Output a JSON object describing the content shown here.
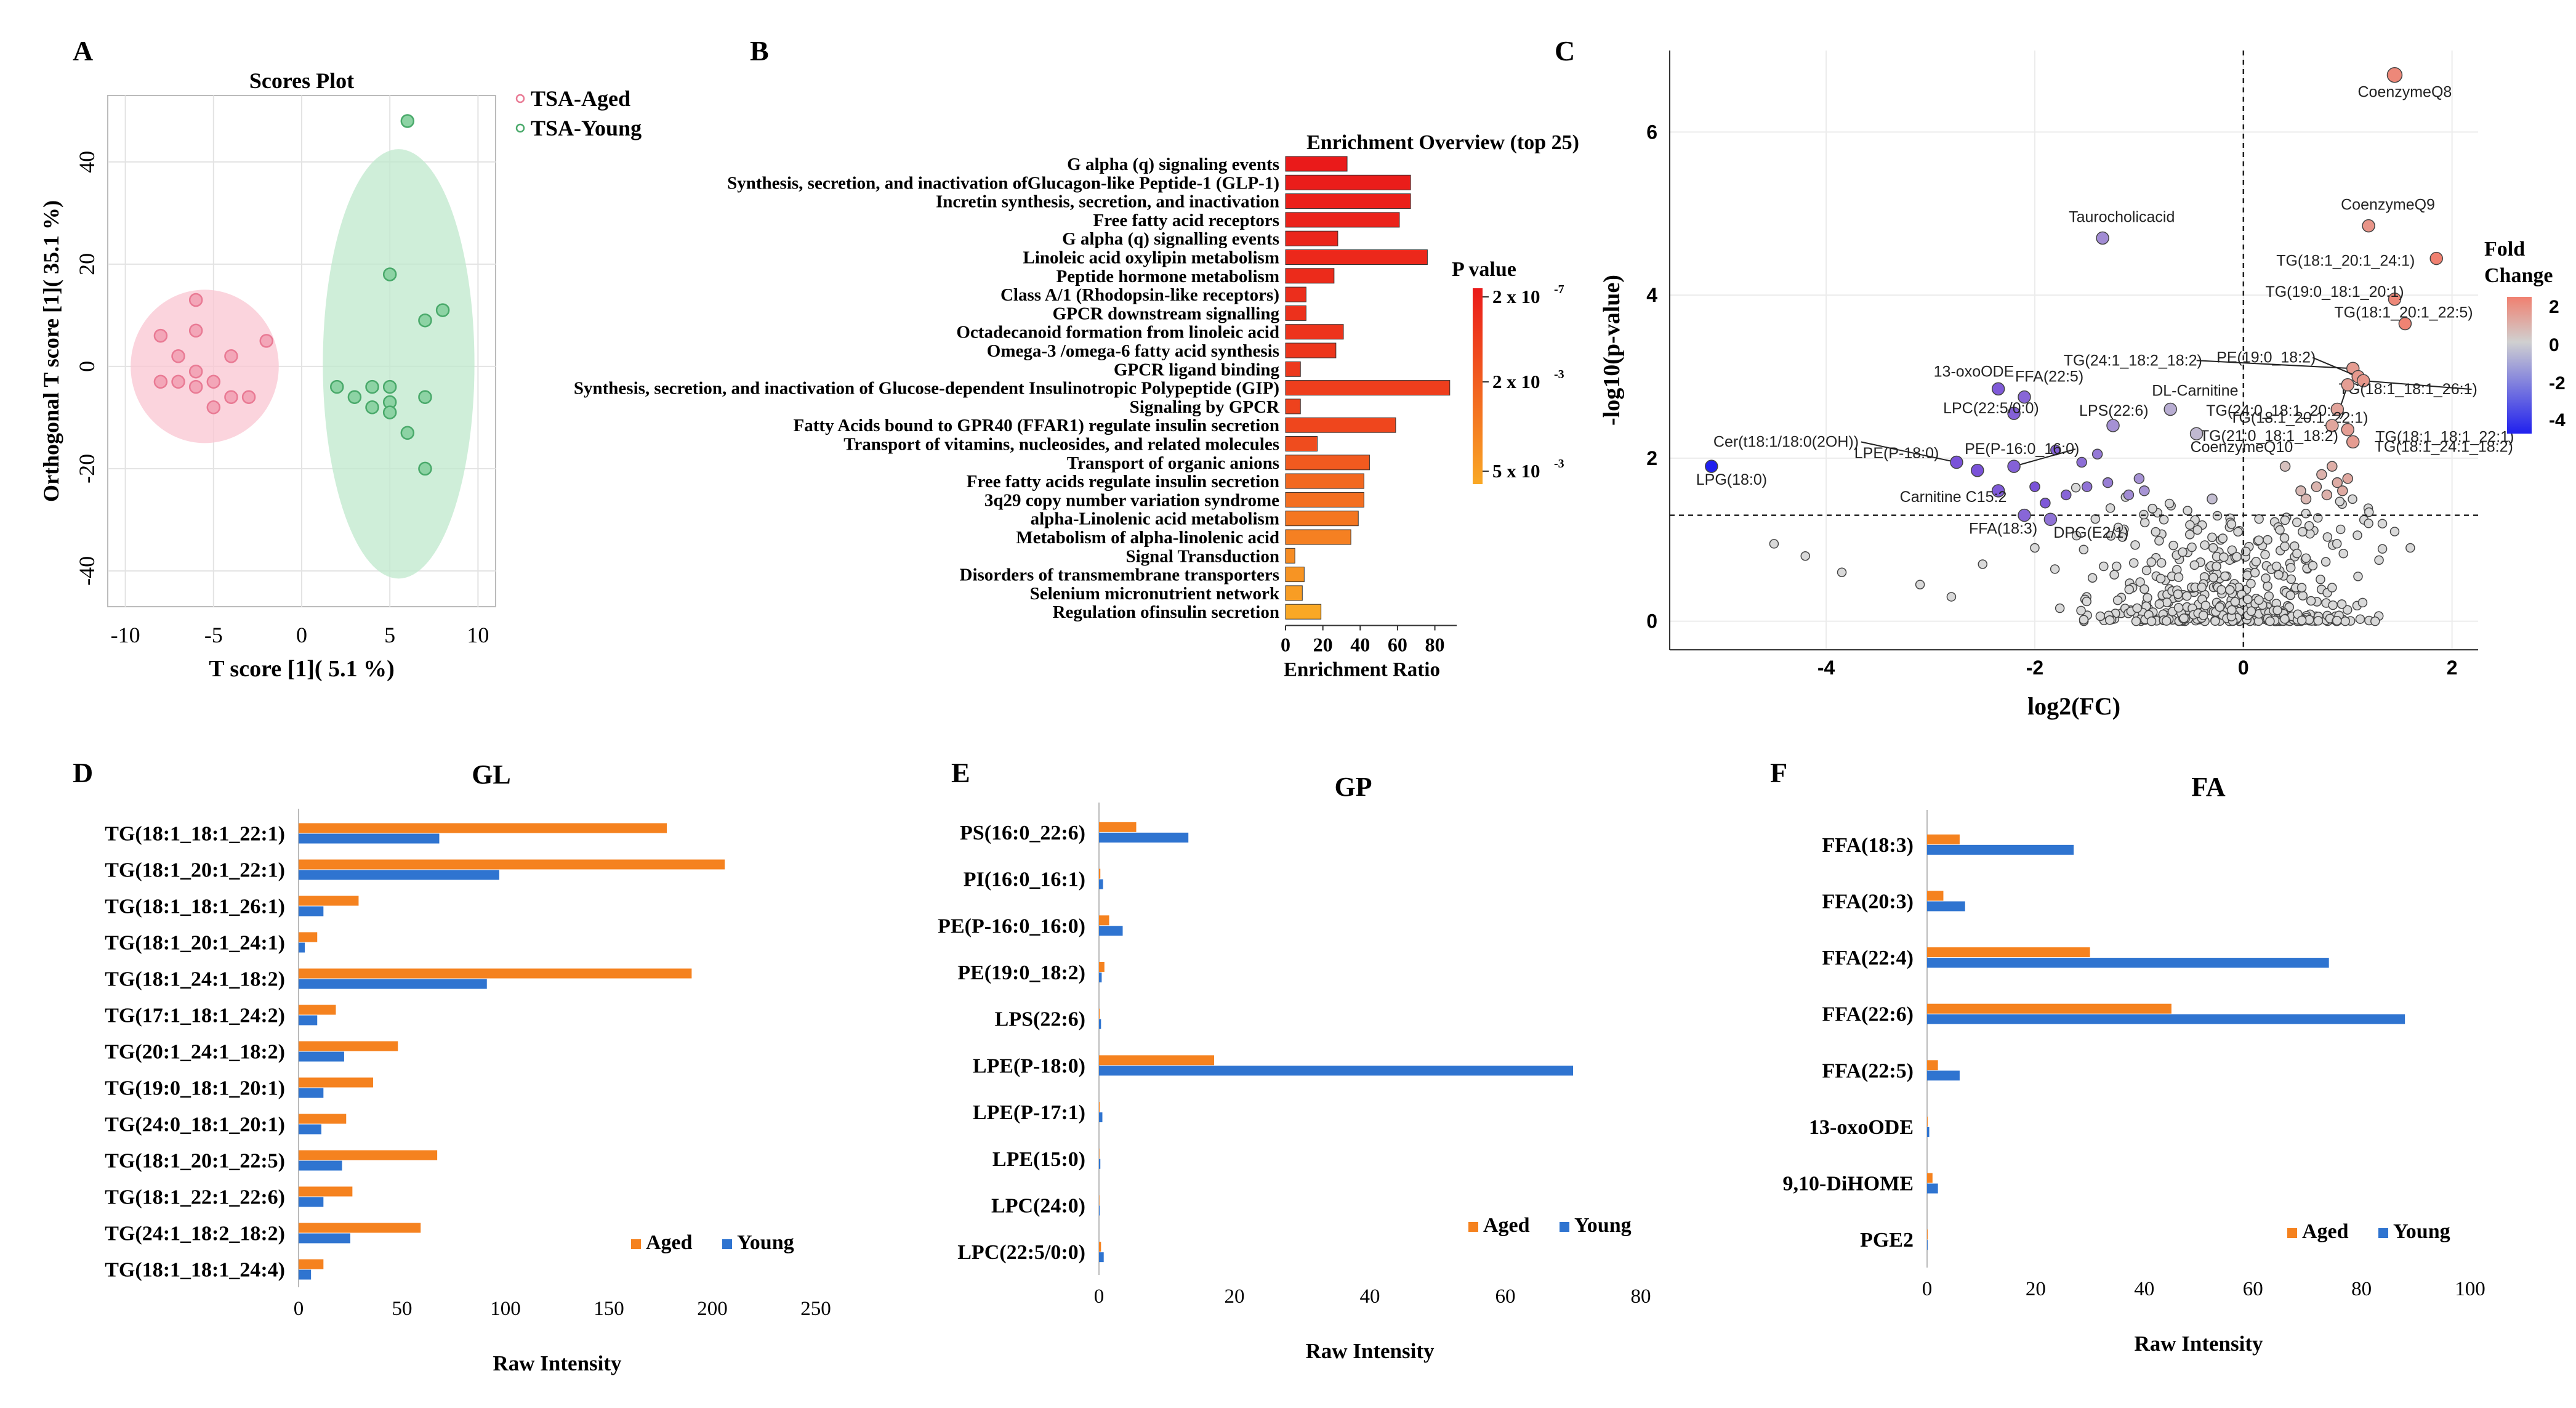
{
  "chart_data": [
    {
      "panel": "A",
      "type": "scatter",
      "title": "Scores Plot",
      "xlabel": "T score [1]( 5.1 %)",
      "ylabel": "Orthogonal T score [1]( 35.1 %)",
      "xlim": [
        -11,
        11
      ],
      "ylim": [
        -47,
        53
      ],
      "xticks": [
        -10,
        -5,
        0,
        5,
        10
      ],
      "yticks": [
        -40,
        -20,
        0,
        20,
        40
      ],
      "grid": true,
      "legend_position": "top-right",
      "series": [
        {
          "name": "TSA-Aged",
          "color": "#e97a94",
          "fill": "#f3a6b8",
          "ellipse_fill": "#f9c5d2",
          "ellipse": {
            "cx": -5.5,
            "cy": 0,
            "rx": 4.2,
            "ry": 15
          },
          "points": [
            [
              -6,
              13
            ],
            [
              -8,
              6
            ],
            [
              -6,
              7
            ],
            [
              -7,
              2
            ],
            [
              -4,
              2
            ],
            [
              -2,
              5
            ],
            [
              -6,
              -1
            ],
            [
              -5,
              -3
            ],
            [
              -7,
              -3
            ],
            [
              -8,
              -3
            ],
            [
              -6,
              -4
            ],
            [
              -4,
              -6
            ],
            [
              -3,
              -6
            ],
            [
              -5,
              -8
            ]
          ]
        },
        {
          "name": "TSA-Young",
          "color": "#49a96a",
          "fill": "#8dd3a4",
          "ellipse_fill": "#bfe8cc",
          "ellipse": {
            "cx": 5.5,
            "cy": 0.5,
            "rx": 4.3,
            "ry": 42
          },
          "points": [
            [
              6,
              48
            ],
            [
              5,
              18
            ],
            [
              8,
              11
            ],
            [
              7,
              9
            ],
            [
              2,
              -4
            ],
            [
              4,
              -4
            ],
            [
              5,
              -4
            ],
            [
              3,
              -6
            ],
            [
              5,
              -7
            ],
            [
              7,
              -6
            ],
            [
              4,
              -8
            ],
            [
              5,
              -9
            ],
            [
              6,
              -13
            ],
            [
              7,
              -20
            ]
          ]
        }
      ]
    },
    {
      "panel": "B",
      "type": "bar",
      "orientation": "horizontal",
      "title": "Enrichment Overview (top 25)",
      "xlabel": "Enrichment Ratio",
      "xlim": [
        0,
        95
      ],
      "xticks": [
        0,
        20,
        40,
        60,
        80
      ],
      "xtick_labels": [
        "0",
        "20",
        "40",
        "60",
        "80"
      ],
      "legend_title": "P value",
      "legend_labels": [
        "2 x 10",
        "2 x 10",
        "5 x 10"
      ],
      "legend_exponents": [
        "-7",
        "-3",
        "-3"
      ],
      "color_low": "#ea1a1a",
      "color_high": "#f9a825",
      "categories": [
        "G alpha (q) signaling events",
        "Synthesis, secretion, and inactivation ofGlucagon-like Peptide-1 (GLP-1)",
        "Incretin synthesis, secretion, and inactivation",
        "Free fatty acid receptors",
        "G alpha (q) signalling events",
        "Linoleic acid oxylipin metabolism",
        "Peptide hormone metabolism",
        "Class A/1 (Rhodopsin-like receptors)",
        "GPCR downstream signalling",
        "Octadecanoid formation from linoleic acid",
        "Omega-3 /omega-6 fatty acid synthesis",
        "GPCR ligand binding",
        "Synthesis, secretion, and inactivation of Glucose-dependent Insulinotropic Polypeptide (GIP)",
        "Signaling by GPCR",
        "Fatty Acids bound to GPR40 (FFAR1) regulate insulin secretion",
        "Transport of vitamins, nucleosides, and related molecules",
        "Transport of organic anions",
        "Free fatty acids regulate insulin secretion",
        "3q29 copy number variation syndrome",
        "alpha-Linolenic acid metabolism",
        "Metabolism of alpha-linolenic acid",
        "Signal Transduction",
        "Disorders of transmembrane transporters",
        "Selenium micronutrient network",
        "Regulation ofinsulin secretion"
      ],
      "values": [
        33,
        67,
        67,
        61,
        28,
        76,
        26,
        11,
        11,
        31,
        27,
        8,
        88,
        8,
        59,
        17,
        45,
        42,
        42,
        39,
        35,
        5,
        10,
        9,
        19
      ],
      "pvalue_rank": [
        0.0,
        0.02,
        0.04,
        0.06,
        0.08,
        0.1,
        0.12,
        0.14,
        0.16,
        0.18,
        0.2,
        0.22,
        0.25,
        0.28,
        0.31,
        0.35,
        0.45,
        0.55,
        0.6,
        0.65,
        0.72,
        0.8,
        0.86,
        0.92,
        1.0
      ]
    },
    {
      "panel": "C",
      "type": "scatter",
      "subtype": "volcano",
      "xlabel": "log2(FC)",
      "ylabel": "-log10(p-value)",
      "xlim": [
        -5.5,
        2.25
      ],
      "ylim": [
        -0.35,
        7
      ],
      "xticks": [
        -4,
        -2,
        0,
        2
      ],
      "yticks": [
        0,
        2,
        4,
        6
      ],
      "threshold_y": 1.3,
      "threshold_x": 0,
      "legend_title": [
        "Fold",
        "Change"
      ],
      "legend_ticks": [
        "2",
        "0",
        "-2",
        "-4"
      ],
      "colorscale": [
        "#f08070",
        "#d0d0d0",
        "#2020ee"
      ],
      "labeled_points": [
        {
          "label": "CoenzymeQ8",
          "x": 1.45,
          "y": 6.7,
          "fc": 1.45
        },
        {
          "label": "CoenzymeQ9",
          "x": 1.2,
          "y": 4.85,
          "fc": 1.2
        },
        {
          "label": "Taurocholicacid",
          "x": -1.35,
          "y": 4.7,
          "fc": -1.35
        },
        {
          "label": "TG(18:1_20:1_24:1)",
          "x": 1.85,
          "y": 4.45,
          "fc": 1.85
        },
        {
          "label": "TG(19:0_18:1_20:1)",
          "x": 1.45,
          "y": 3.95,
          "fc": 1.45
        },
        {
          "label": "TG(18:1_20:1_22:5)",
          "x": 1.55,
          "y": 3.65,
          "fc": 1.55
        },
        {
          "label": "TG(24:1_18:2_18:2)",
          "x": 1.05,
          "y": 3.1,
          "fc": 1.05
        },
        {
          "label": "PE(19:0_18:2)",
          "x": 1.1,
          "y": 3.0,
          "fc": 1.1
        },
        {
          "label": "TG(18:1_18:1_26:1)",
          "x": 1.15,
          "y": 2.95,
          "fc": 1.15
        },
        {
          "label": "TG(24:0_18:1_20:1)",
          "x": 1.0,
          "y": 2.9,
          "fc": 1.0
        },
        {
          "label": "13-oxoODE",
          "x": -2.35,
          "y": 2.85,
          "fc": -2.35
        },
        {
          "label": "FFA(22:5)",
          "x": -2.1,
          "y": 2.75,
          "fc": -2.1
        },
        {
          "label": "TG(18:1_20:1_22:1)",
          "x": 0.9,
          "y": 2.6,
          "fc": 0.9
        },
        {
          "label": "DL-Carnitine",
          "x": -0.7,
          "y": 2.6,
          "fc": -0.7
        },
        {
          "label": "LPC(22:5/0:0)",
          "x": -2.2,
          "y": 2.55,
          "fc": -2.2
        },
        {
          "label": "LPS(22:6)",
          "x": -1.25,
          "y": 2.4,
          "fc": -1.25
        },
        {
          "label": "TG(21:0_18:1_18:2)",
          "x": 0.85,
          "y": 2.4,
          "fc": 0.85
        },
        {
          "label": "TG(18:1_18:1_22:1)",
          "x": 1.0,
          "y": 2.35,
          "fc": 1.0
        },
        {
          "label": "TG(18:1_24:1_18:2)",
          "x": 1.05,
          "y": 2.2,
          "fc": 1.05
        },
        {
          "label": "CoenzymeQ10",
          "x": -0.45,
          "y": 2.3,
          "fc": -0.45
        },
        {
          "label": "Cer(t18:1/18:0(2OH))",
          "x": -2.75,
          "y": 1.95,
          "fc": -2.75
        },
        {
          "label": "LPE(P-18:0)",
          "x": -2.55,
          "y": 1.85,
          "fc": -2.55
        },
        {
          "label": "PE(P-16:0_16:0)",
          "x": -2.2,
          "y": 1.9,
          "fc": -2.2
        },
        {
          "label": "LPG(18:0)",
          "x": -5.1,
          "y": 1.9,
          "fc": -5.1
        },
        {
          "label": "Carnitine C15:2",
          "x": -2.35,
          "y": 1.6,
          "fc": -2.35
        },
        {
          "label": "FFA(18:3)",
          "x": -2.1,
          "y": 1.3,
          "fc": -2.1
        },
        {
          "label": "DPG(E2/1)",
          "x": -1.85,
          "y": 1.25,
          "fc": -1.85
        }
      ]
    },
    {
      "panel": "D",
      "type": "bar",
      "orientation": "horizontal",
      "title": "GL",
      "xlabel": "Raw Intensity",
      "xlim": [
        0,
        250
      ],
      "xticks": [
        0,
        50,
        100,
        150,
        200,
        250
      ],
      "legend_position": "bottom-right",
      "categories": [
        "TG(18:1_18:1_22:1)",
        "TG(18:1_20:1_22:1)",
        "TG(18:1_18:1_26:1)",
        "TG(18:1_20:1_24:1)",
        "TG(18:1_24:1_18:2)",
        "TG(17:1_18:1_24:2)",
        "TG(20:1_24:1_18:2)",
        "TG(19:0_18:1_20:1)",
        "TG(24:0_18:1_20:1)",
        "TG(18:1_20:1_22:5)",
        "TG(18:1_22:1_22:6)",
        "TG(24:1_18:2_18:2)",
        "TG(18:1_18:1_24:4)"
      ],
      "series": [
        {
          "name": "Aged",
          "color": "#f5821f",
          "values": [
            178,
            206,
            29,
            9,
            190,
            18,
            48,
            36,
            23,
            67,
            26,
            59,
            12
          ]
        },
        {
          "name": "Young",
          "color": "#2f74d0",
          "values": [
            68,
            97,
            12,
            3,
            91,
            9,
            22,
            12,
            11,
            21,
            12,
            25,
            6
          ]
        }
      ]
    },
    {
      "panel": "E",
      "type": "bar",
      "orientation": "horizontal",
      "title": "GP",
      "xlabel": "Raw Intensity",
      "xlim": [
        0,
        80
      ],
      "xticks": [
        0,
        20,
        40,
        60,
        80
      ],
      "legend_position": "bottom-right",
      "categories": [
        "PS(16:0_22:6)",
        "PI(16:0_16:1)",
        "PE(P-16:0_16:0)",
        "PE(19:0_18:2)",
        "LPS(22:6)",
        "LPE(P-18:0)",
        "LPE(P-17:1)",
        "LPE(15:0)",
        "LPC(24:0)",
        "LPC(22:5/0:0)"
      ],
      "series": [
        {
          "name": "Aged",
          "color": "#f5821f",
          "values": [
            5.5,
            0.2,
            1.5,
            0.8,
            0.1,
            17,
            0.1,
            0.05,
            0.05,
            0.3
          ]
        },
        {
          "name": "Young",
          "color": "#2f74d0",
          "values": [
            13.2,
            0.6,
            3.5,
            0.4,
            0.3,
            70,
            0.5,
            0.2,
            0.1,
            0.7
          ]
        }
      ]
    },
    {
      "panel": "F",
      "type": "bar",
      "orientation": "horizontal",
      "title": "FA",
      "xlabel": "Raw Intensity",
      "xlim": [
        0,
        100
      ],
      "xticks": [
        0,
        20,
        40,
        60,
        80,
        100
      ],
      "legend_position": "bottom-right",
      "categories": [
        "FFA(18:3)",
        "FFA(20:3)",
        "FFA(22:4)",
        "FFA(22:6)",
        "FFA(22:5)",
        "13-oxoODE",
        "9,10-DiHOME",
        "PGE2"
      ],
      "series": [
        {
          "name": "Aged",
          "color": "#f5821f",
          "values": [
            6,
            3,
            30,
            45,
            2,
            0.1,
            1,
            0.1
          ]
        },
        {
          "name": "Young",
          "color": "#2f74d0",
          "values": [
            27,
            7,
            74,
            88,
            6,
            0.4,
            2,
            0.1
          ]
        }
      ]
    }
  ],
  "panel_labels": [
    "A",
    "B",
    "C",
    "D",
    "E",
    "F"
  ]
}
